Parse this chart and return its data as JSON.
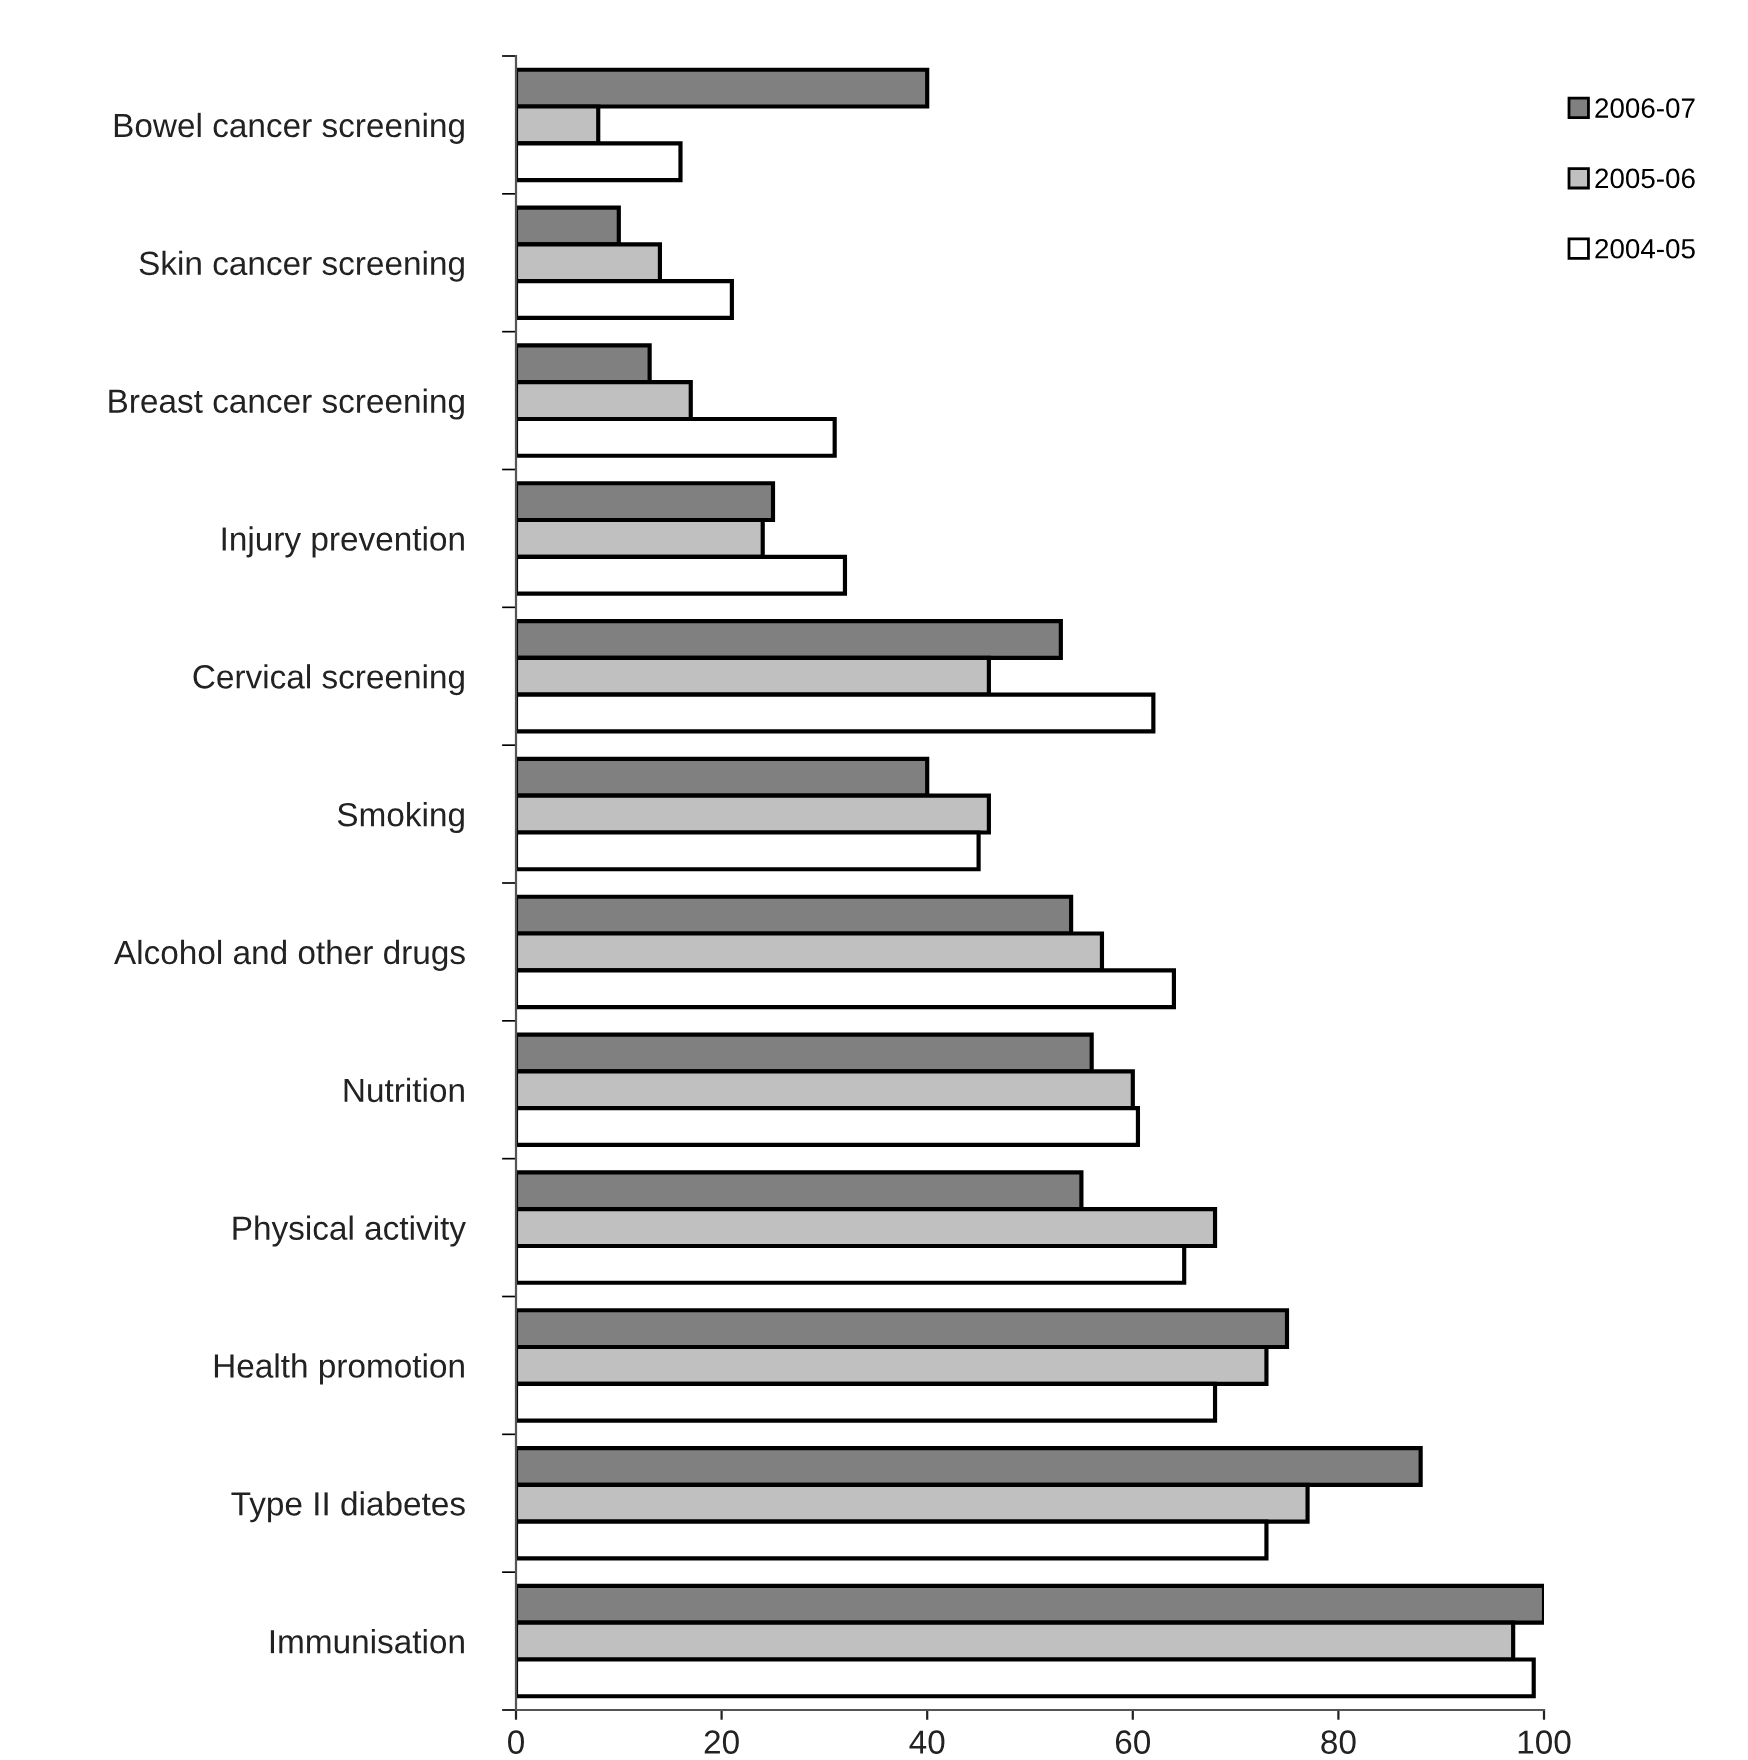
{
  "chart_data": {
    "type": "bar",
    "orientation": "horizontal",
    "categories": [
      "Bowel cancer screening",
      "Skin cancer screening",
      "Breast cancer screening",
      "Injury prevention",
      "Cervical screening",
      "Smoking",
      "Alcohol and other drugs",
      "Nutrition",
      "Physical activity",
      "Health promotion",
      "Type II diabetes",
      "Immunisation"
    ],
    "series": [
      {
        "name": "2006-07",
        "color": "#808080",
        "values": [
          40,
          10,
          13,
          25,
          53,
          40,
          54,
          56,
          55,
          75,
          88,
          100
        ]
      },
      {
        "name": "2005-06",
        "color": "#c0c0c0",
        "values": [
          8,
          14,
          17,
          24,
          46,
          46,
          57,
          60,
          68,
          73,
          77,
          97
        ]
      },
      {
        "name": "2004-05",
        "color": "#ffffff",
        "values": [
          16,
          21,
          31,
          32,
          62,
          45,
          64,
          60.5,
          65,
          68,
          73,
          99
        ]
      }
    ],
    "xlim": [
      0,
      100
    ],
    "xticks": [
      0,
      20,
      40,
      60,
      80,
      100
    ],
    "grid": false,
    "legend": "top right"
  }
}
